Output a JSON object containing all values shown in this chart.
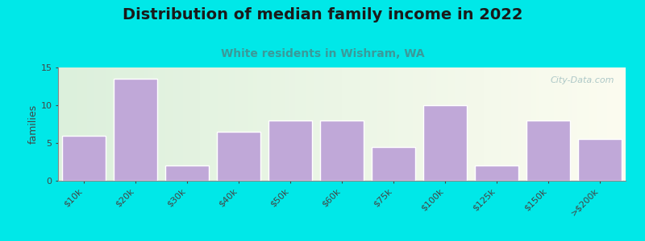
{
  "title": "Distribution of median family income in 2022",
  "subtitle": "White residents in Wishram, WA",
  "ylabel": "families",
  "categories": [
    "$10k",
    "$20k",
    "$30k",
    "$40k",
    "$50k",
    "$60k",
    "$75k",
    "$100k",
    "$125k",
    "$150k",
    ">$200k"
  ],
  "values": [
    6,
    13.5,
    2,
    6.5,
    8,
    8,
    4.5,
    10,
    2,
    8,
    5.5
  ],
  "bar_color": "#c0a8d8",
  "bar_edge_color": "#ffffff",
  "ylim": [
    0,
    15
  ],
  "yticks": [
    0,
    5,
    10,
    15
  ],
  "background_color": "#00e8e8",
  "title_fontsize": 14,
  "subtitle_fontsize": 10,
  "subtitle_color": "#3a9a9a",
  "watermark_text": "City-Data.com",
  "watermark_color": "#a0bfc0",
  "axis_label_fontsize": 8,
  "ylabel_fontsize": 9
}
